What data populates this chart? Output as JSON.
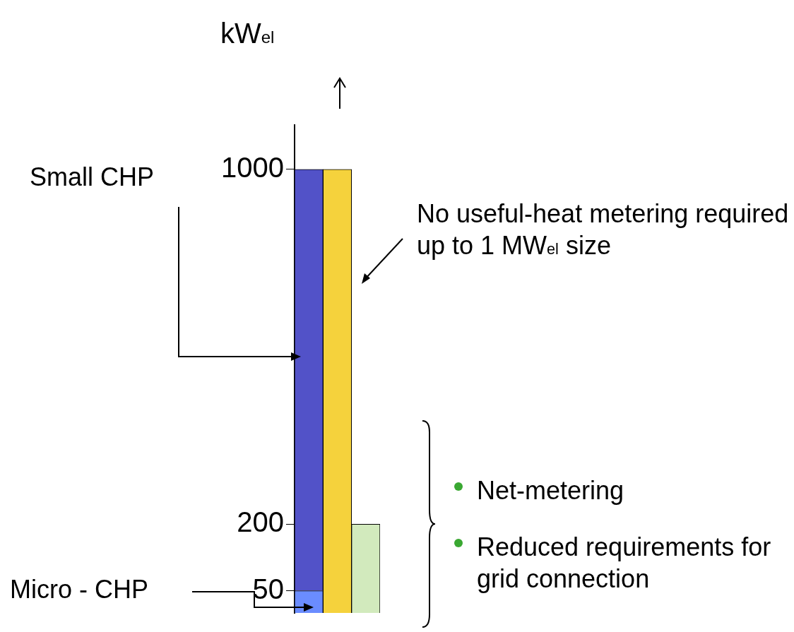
{
  "chart_data": {
    "type": "bar",
    "stacked": true,
    "ylabel": "kW$_{el}$",
    "categories": [
      null,
      null,
      null
    ],
    "series": [
      {
        "color": "#6a8cff",
        "values": [
          50,
          null,
          null
        ]
      },
      {
        "color": "#5252c8",
        "values": [
          950,
          null,
          null
        ]
      },
      {
        "color": "#f5d23c",
        "values": [
          null,
          1000,
          null
        ]
      },
      {
        "color": "#d2eabd",
        "values": [
          null,
          null,
          200
        ]
      }
    ],
    "ylim": [
      0,
      1100
    ],
    "yticks": [
      50,
      200,
      1000
    ],
    "grid": false,
    "legend": false,
    "tick_labels": "y",
    "annotations": [
      "Small CHP",
      "Micro - CHP",
      "No useful-heat metering required up to 1 MW$_{el}$ size",
      "Net-metering",
      "Reduced requirements for grid connection"
    ]
  }
}
